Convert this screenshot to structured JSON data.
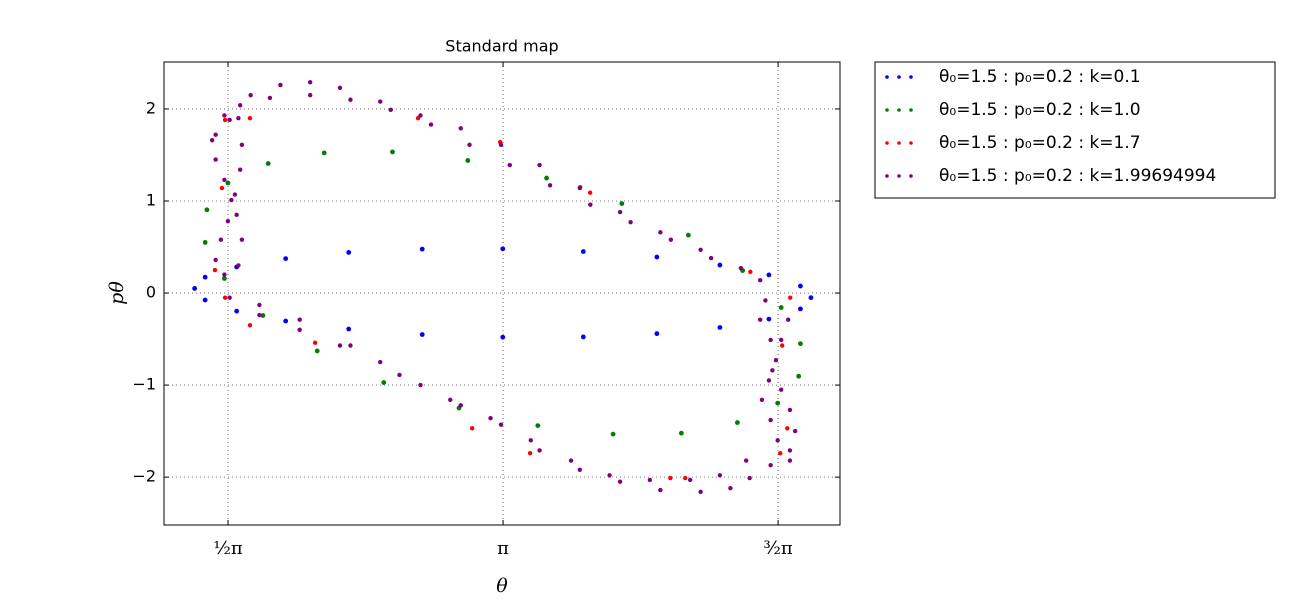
{
  "chart_data": {
    "type": "scatter",
    "title": "Standard map",
    "x_label": "θ",
    "y_label": "pθ",
    "xlim": [
      1.205,
      5.066
    ],
    "ylim": [
      -2.52,
      2.51
    ],
    "xticks": [
      {
        "value": 1.5708,
        "label": "½π"
      },
      {
        "value": 3.1416,
        "label": "π"
      },
      {
        "value": 4.7124,
        "label": "³⁄₂π"
      }
    ],
    "yticks": [
      {
        "value": -2,
        "label": "−2"
      },
      {
        "value": -1,
        "label": "−1"
      },
      0,
      1,
      2
    ],
    "grid": true,
    "legend_position": "outside-right",
    "series": [
      {
        "name": "θ₀=1.5 : p₀=0.2 : k=0.1",
        "color": "#0000ff",
        "x": [
          4.9,
          4.84,
          4.66,
          4.38,
          4.02,
          3.6,
          3.14,
          2.68,
          2.26,
          1.9,
          1.62,
          1.44,
          1.38,
          1.44,
          1.62,
          1.9,
          2.26,
          2.68,
          3.14,
          3.6,
          4.02,
          4.38,
          4.66,
          4.84
        ],
        "values": [
          -0.05,
          0.076,
          0.197,
          0.304,
          0.391,
          0.451,
          0.48,
          0.477,
          0.441,
          0.374,
          0.283,
          0.172,
          0.05,
          -0.076,
          -0.197,
          -0.304,
          -0.391,
          -0.451,
          -0.48,
          -0.477,
          -0.441,
          -0.374,
          -0.283,
          -0.172
        ]
      },
      {
        "name": "θ₀=1.5 : p₀=0.2 : k=1.0",
        "color": "#007f00",
        "x": [
          4.84,
          4.73,
          4.51,
          4.2,
          3.82,
          3.39,
          2.94,
          2.51,
          2.12,
          1.8,
          1.57,
          1.45,
          1.44,
          1.55,
          1.77,
          2.08,
          2.46,
          2.89,
          3.34,
          3.77,
          4.16,
          4.48,
          4.71,
          4.83
        ],
        "values": [
          -0.55,
          -0.158,
          0.244,
          0.629,
          0.972,
          1.249,
          1.44,
          1.533,
          1.522,
          1.407,
          1.196,
          0.904,
          0.55,
          0.158,
          -0.244,
          -0.629,
          -0.972,
          -1.249,
          -1.44,
          -1.533,
          -1.522,
          -1.407,
          -1.196,
          -0.904
        ]
      },
      {
        "name": "θ₀=1.5 : p₀=0.2 : k=1.7",
        "color": "#ff0000",
        "x": [
          1.554,
          1.696,
          2.656,
          1.536,
          1.496,
          1.554,
          3.582,
          3.639,
          3.125,
          4.554,
          4.782,
          4.736,
          4.765,
          4.725,
          4.097,
          4.182,
          3.296,
          2.965,
          2.068,
          1.696
        ],
        "values": [
          1.88,
          1.9,
          1.9,
          1.14,
          0.25,
          -0.05,
          1.15,
          1.09,
          1.64,
          0.23,
          -0.05,
          -0.57,
          -1.47,
          -1.74,
          -2.01,
          -2.01,
          -1.74,
          -1.47,
          -0.54,
          -0.35
        ]
      },
      {
        "name": "θ₀=1.5 : p₀=0.2 : k=1.99694994",
        "color": "#800080",
        "x": [
          1.5,
          1.55,
          1.7,
          1.87,
          2.04,
          2.21,
          2.44,
          2.67,
          2.9,
          3.13,
          3.35,
          3.58,
          3.81,
          4.04,
          4.27,
          4.5,
          4.61,
          1.64,
          1.81,
          2.04,
          2.27,
          2.5,
          2.73,
          2.95,
          3.18,
          3.41,
          3.64,
          3.87,
          4.1,
          4.33,
          1.48,
          1.5,
          1.55,
          1.59,
          1.57,
          1.53,
          1.5,
          1.55,
          1.63,
          1.65,
          1.62,
          1.61,
          1.64,
          1.65,
          1.63,
          1.58,
          1.58,
          1.75,
          1.98,
          2.21,
          2.44,
          2.67,
          2.9,
          3.13,
          3.35,
          3.58,
          3.81,
          4.04,
          4.27,
          4.44,
          4.55,
          4.67,
          4.78,
          1.75,
          1.98,
          2.27,
          2.55,
          2.84,
          3.07,
          3.3,
          3.53,
          3.75,
          3.98,
          4.21,
          4.38,
          4.53,
          4.64,
          4.61,
          4.67,
          4.7,
          4.66,
          4.62,
          4.67,
          4.71,
          4.78,
          4.81,
          4.78,
          4.73,
          4.68,
          4.73,
          4.77
        ],
        "values": [
          1.72,
          1.93,
          2.15,
          2.26,
          2.29,
          2.23,
          2.08,
          1.93,
          1.79,
          1.61,
          1.39,
          1.14,
          0.88,
          0.66,
          0.47,
          0.27,
          0.14,
          2.04,
          2.12,
          2.15,
          2.1,
          1.99,
          1.83,
          1.61,
          1.39,
          1.17,
          0.96,
          0.77,
          0.58,
          0.38,
          1.66,
          1.45,
          1.23,
          1.01,
          0.78,
          0.58,
          0.36,
          0.2,
          0.3,
          0.58,
          0.85,
          1.07,
          1.34,
          1.61,
          1.9,
          1.88,
          -0.05,
          -0.24,
          -0.4,
          -0.57,
          -0.75,
          -1.0,
          -1.22,
          -1.43,
          -1.71,
          -1.92,
          -2.05,
          -2.14,
          -2.16,
          -2.12,
          -2.01,
          -1.87,
          -1.71,
          -0.13,
          -0.29,
          -0.57,
          -0.89,
          -1.16,
          -1.36,
          -1.6,
          -1.82,
          -1.98,
          -2.03,
          -2.03,
          -1.98,
          -1.82,
          -0.08,
          -0.29,
          -0.51,
          -0.73,
          -0.95,
          -1.16,
          -1.38,
          -1.6,
          -1.82,
          -1.5,
          -1.27,
          -1.05,
          -0.84,
          -0.51,
          -0.29
        ]
      }
    ]
  }
}
